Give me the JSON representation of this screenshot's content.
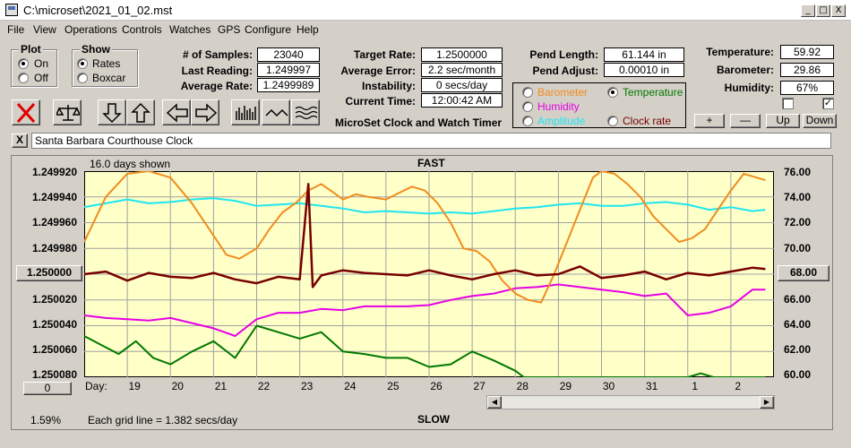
{
  "window": {
    "title": "C:\\microset\\2021_01_02.mst"
  },
  "window_buttons": {
    "minimize": "_",
    "maximize": "□",
    "close": "X"
  },
  "menu": [
    "File",
    "View",
    "Operations",
    "Controls",
    "Watches",
    "GPS",
    "Configure",
    "Help"
  ],
  "plot_group": {
    "caption": "Plot",
    "on": "On",
    "off": "Off",
    "selected": "On"
  },
  "show_group": {
    "caption": "Show",
    "rates": "Rates",
    "boxcar": "Boxcar",
    "selected": "Rates"
  },
  "stats": {
    "samples_label": "# of Samples:",
    "samples": "23040",
    "last_label": "Last Reading:",
    "last": "1.249997",
    "avg_label": "Average Rate:",
    "avg": "1.2499989"
  },
  "rates": {
    "target_label": "Target Rate:",
    "target": "1.2500000",
    "avgerr_label": "Average Error:",
    "avgerr": "2.2 sec/month",
    "instab_label": "Instability:",
    "instab": "0 secs/day",
    "time_label": "Current Time:",
    "time": "12:00:42 AM"
  },
  "app_name": "MicroSet Clock and Watch Timer",
  "pend": {
    "length_label": "Pend Length:",
    "length": "61.144 in",
    "adjust_label": "Pend Adjust:",
    "adjust": "0.00010 in"
  },
  "sensor_select": {
    "barometer": "Barometer",
    "temperature": "Temperature",
    "humidity": "Humidity",
    "amplitude": "Amplitude",
    "clock_rate": "Clock rate",
    "selected": "Temperature"
  },
  "env": {
    "temp_label": "Temperature:",
    "temp": "59.92",
    "baro_label": "Barometer:",
    "baro": "29.86",
    "humid_label": "Humidity:",
    "humid": "67%",
    "check1": false,
    "check2": true
  },
  "zoom_buttons": {
    "plus": "+",
    "minus": "—",
    "up": "Up",
    "down": "Down"
  },
  "clock_close": "X",
  "clock_name": "Santa Barbara Courthouse Clock",
  "chart": {
    "days_shown": "16.0 days shown",
    "fast": "FAST",
    "slow": "SLOW",
    "grid_note": "Each grid line = 1.382 secs/day",
    "percent": "1.59%",
    "center_button": "1.250000",
    "right_button": "68.00",
    "zero_button": "0",
    "day_label": "Day:"
  },
  "colors": {
    "plot_bg": "#ffffc8",
    "barometer": "#f08c1e",
    "temperature": "#007800",
    "humidity": "#e600e6",
    "amplitude": "#1ee6f0",
    "rate": "#780000",
    "grid": "#a0a0a0"
  },
  "chart_data": {
    "type": "line",
    "title": "FAST",
    "xlabel": "Day:",
    "x_ticks": [
      "19",
      "20",
      "21",
      "22",
      "23",
      "24",
      "25",
      "26",
      "27",
      "28",
      "29",
      "30",
      "31",
      "1",
      "2"
    ],
    "y_ticks_left": [
      "1.249920",
      "1.249940",
      "1.249960",
      "1.249980",
      "1.250000",
      "1.250020",
      "1.250040",
      "1.250060",
      "1.250080"
    ],
    "y_ticks_right": [
      "76.00",
      "74.00",
      "72.00",
      "70.00",
      "68.00",
      "66.00",
      "64.00",
      "62.00",
      "60.00"
    ],
    "ylim_left": [
      1.24992,
      1.25008
    ],
    "ylim_right": [
      60,
      76
    ],
    "xlim": [
      18.0,
      34.0
    ],
    "grid": true,
    "series": [
      {
        "name": "Barometer",
        "color": "#f08c1e",
        "x": [
          18.0,
          18.5,
          19.0,
          19.5,
          20.0,
          20.5,
          21.0,
          21.3,
          21.6,
          22.0,
          22.3,
          22.6,
          22.9,
          23.2,
          23.5,
          23.8,
          24.0,
          24.3,
          24.6,
          25.0,
          25.3,
          25.6,
          25.9,
          26.2,
          26.5,
          26.8,
          27.1,
          27.4,
          27.7,
          28.0,
          28.3,
          28.6,
          28.9,
          29.2,
          29.5,
          29.8,
          30.0,
          30.3,
          30.6,
          30.9,
          31.2,
          31.5,
          31.8,
          32.1,
          32.4,
          32.7,
          33.0,
          33.3,
          33.8
        ],
        "values": [
          70.5,
          74.0,
          75.8,
          76.0,
          75.5,
          73.5,
          71.0,
          69.5,
          69.2,
          70.0,
          71.5,
          72.8,
          73.5,
          74.5,
          75.0,
          74.3,
          73.8,
          74.2,
          74.0,
          73.8,
          74.3,
          74.8,
          74.5,
          73.5,
          72.0,
          70.0,
          69.8,
          69.0,
          67.5,
          66.5,
          66.0,
          65.8,
          68.0,
          70.5,
          73.0,
          75.5,
          76.0,
          75.8,
          75.0,
          74.0,
          72.5,
          71.5,
          70.5,
          70.8,
          71.5,
          73.0,
          74.5,
          75.8,
          75.3
        ]
      },
      {
        "name": "Amplitude",
        "color": "#1ee6f0",
        "x": [
          18.0,
          18.5,
          19.0,
          19.5,
          20.0,
          20.5,
          21.0,
          21.5,
          22.0,
          22.5,
          23.0,
          23.5,
          24.0,
          24.5,
          25.0,
          25.5,
          26.0,
          26.5,
          27.0,
          27.5,
          28.0,
          28.5,
          29.0,
          29.5,
          30.0,
          30.5,
          31.0,
          31.5,
          32.0,
          32.5,
          33.0,
          33.5,
          33.8
        ],
        "values": [
          73.2,
          73.5,
          73.8,
          73.5,
          73.6,
          73.8,
          73.9,
          73.7,
          73.3,
          73.4,
          73.5,
          73.3,
          73.1,
          72.8,
          72.9,
          72.8,
          72.7,
          72.8,
          72.7,
          72.9,
          73.1,
          73.2,
          73.4,
          73.5,
          73.3,
          73.3,
          73.5,
          73.6,
          73.4,
          73.0,
          73.2,
          72.9,
          73.0
        ]
      },
      {
        "name": "Temperature",
        "color": "#007800",
        "x": [
          18.0,
          18.4,
          18.8,
          19.2,
          19.6,
          20.0,
          20.5,
          21.0,
          21.5,
          22.0,
          22.5,
          23.0,
          23.5,
          24.0,
          24.5,
          25.0,
          25.5,
          26.0,
          26.5,
          27.0,
          27.5,
          28.0,
          28.2,
          28.5,
          29.0,
          30.0,
          31.0,
          32.0,
          32.3,
          32.6,
          33.0,
          33.8
        ],
        "values": [
          63.2,
          62.5,
          61.8,
          62.8,
          61.5,
          61.0,
          62.0,
          62.8,
          61.5,
          64.0,
          63.5,
          63.0,
          63.5,
          62.0,
          61.8,
          61.5,
          61.5,
          60.8,
          61.0,
          62.0,
          61.3,
          60.5,
          60.0,
          60.0,
          60.0,
          60.0,
          60.0,
          60.0,
          60.3,
          60.0,
          60.0,
          60.0
        ]
      },
      {
        "name": "Humidity",
        "color": "#e600e6",
        "x": [
          18.0,
          18.5,
          19.0,
          19.5,
          20.0,
          20.5,
          21.0,
          21.5,
          22.0,
          22.5,
          23.0,
          23.5,
          24.0,
          24.5,
          25.0,
          25.5,
          26.0,
          26.5,
          27.0,
          27.5,
          28.0,
          28.5,
          29.0,
          29.5,
          30.0,
          30.5,
          31.0,
          31.5,
          32.0,
          32.5,
          33.0,
          33.5,
          33.8
        ],
        "values": [
          64.8,
          64.6,
          64.5,
          64.4,
          64.6,
          64.2,
          63.8,
          63.2,
          64.5,
          65.0,
          65.0,
          65.3,
          65.2,
          65.5,
          65.5,
          65.5,
          65.6,
          66.0,
          66.3,
          66.5,
          66.9,
          67.0,
          67.2,
          67.0,
          66.8,
          66.6,
          66.3,
          66.5,
          64.8,
          65.0,
          65.5,
          66.8,
          66.8
        ]
      },
      {
        "name": "Clock rate",
        "color": "#780000",
        "x": [
          18.0,
          18.5,
          19.0,
          19.5,
          20.0,
          20.5,
          21.0,
          21.5,
          22.0,
          22.5,
          23.0,
          23.2,
          23.3,
          23.5,
          24.0,
          24.5,
          25.0,
          25.5,
          26.0,
          26.5,
          27.0,
          27.5,
          28.0,
          28.5,
          29.0,
          29.5,
          30.0,
          30.5,
          31.0,
          31.5,
          32.0,
          32.5,
          33.0,
          33.5,
          33.8
        ],
        "values": [
          68.0,
          68.2,
          67.5,
          68.1,
          67.8,
          67.7,
          68.1,
          67.6,
          67.3,
          67.8,
          67.6,
          75.0,
          67.0,
          67.9,
          68.3,
          68.1,
          68.0,
          67.9,
          68.3,
          67.9,
          67.6,
          68.0,
          68.3,
          67.9,
          68.0,
          68.6,
          67.7,
          67.9,
          68.2,
          67.6,
          68.1,
          67.9,
          68.2,
          68.5,
          68.4
        ]
      }
    ]
  }
}
